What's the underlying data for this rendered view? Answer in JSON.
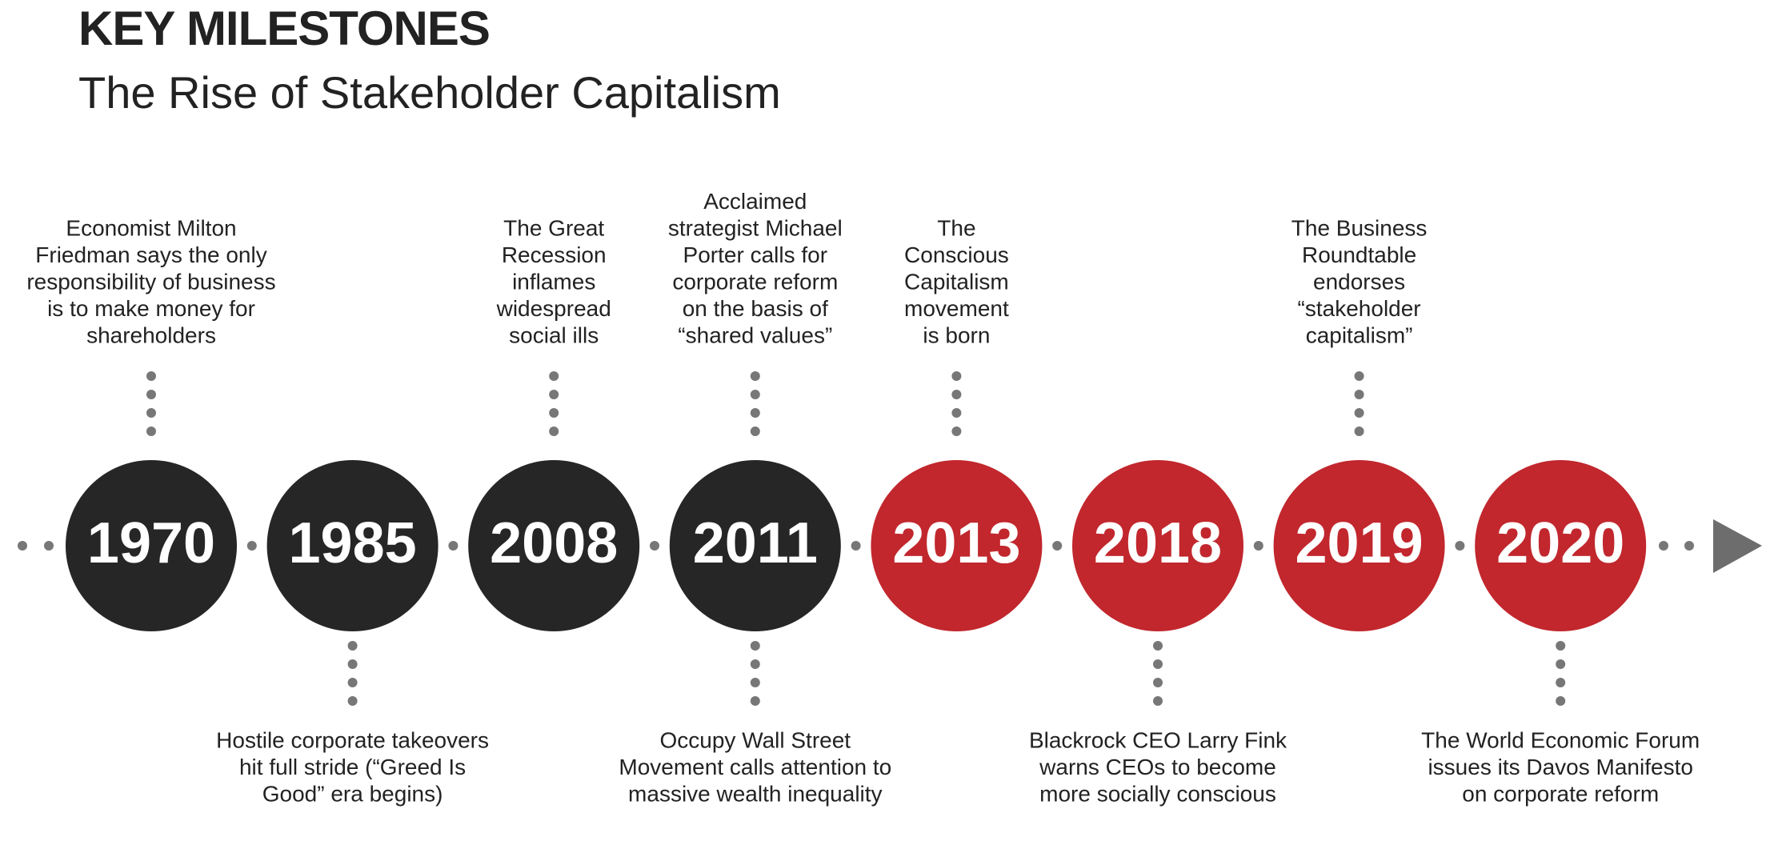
{
  "header": {
    "title": "KEY MILESTONES",
    "subtitle": "The Rise of Stakeholder Capitalism"
  },
  "milestones": [
    {
      "year": "1970",
      "color": "#262626",
      "above": [
        "Economist Milton",
        "Friedman says the only",
        "responsibility of business",
        "is to make money for",
        "shareholders"
      ]
    },
    {
      "year": "1985",
      "color": "#262626",
      "below": [
        "Hostile corporate takeovers",
        "hit full stride (“Greed Is",
        "Good” era begins)"
      ]
    },
    {
      "year": "2008",
      "color": "#262626",
      "above": [
        "The Great",
        "Recession",
        "inflames",
        "widespread",
        "social ills"
      ]
    },
    {
      "year": "2011",
      "color": "#262626",
      "above": [
        "Acclaimed",
        "strategist  Michael",
        "Porter calls for",
        "corporate reform",
        "on the basis of",
        "“shared values”"
      ],
      "below": [
        "Occupy Wall Street",
        "Movement calls attention to",
        "massive wealth inequality"
      ]
    },
    {
      "year": "2013",
      "color": "#c1272d",
      "above": [
        "The",
        "Conscious",
        "Capitalism",
        "movement",
        "is born"
      ]
    },
    {
      "year": "2018",
      "color": "#c1272d",
      "below": [
        "Blackrock CEO Larry Fink",
        "warns CEOs to become",
        "more socially conscious"
      ]
    },
    {
      "year": "2019",
      "color": "#c1272d",
      "above": [
        "The Business",
        "Roundtable",
        "endorses",
        "“stakeholder",
        "capitalism”"
      ]
    },
    {
      "year": "2020",
      "color": "#c1272d",
      "below": [
        "The World Economic Forum",
        "issues its Davos Manifesto",
        "on corporate reform"
      ]
    }
  ]
}
